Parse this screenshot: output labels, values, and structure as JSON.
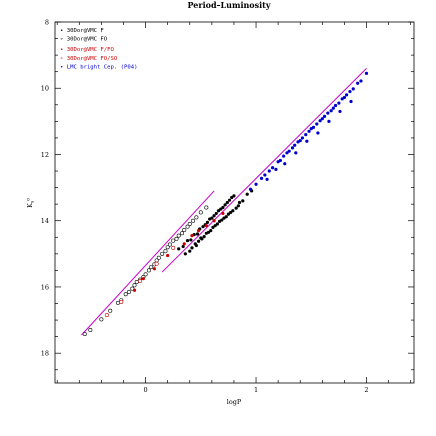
{
  "chart_data": {
    "type": "scatter",
    "title": "Period–Luminosity",
    "xlabel": "logP",
    "ylabel": "K",
    "ylabel_super": "o",
    "ylabel_sub": "s",
    "xlim": [
      -0.82,
      2.43
    ],
    "ylim": [
      18.9,
      8.0
    ],
    "xticks": [
      0,
      1,
      2
    ],
    "yticks": [
      8,
      10,
      12,
      14,
      16,
      18
    ],
    "legend_position": "top-left",
    "legend": [
      {
        "label": "• 30Dor@VMC F",
        "color": "#000000"
      },
      {
        "label": "∘ 30Dor@VMC FO",
        "color": "#000000"
      },
      {
        "label": "• 30Dor@VMC F/FO",
        "color": "#cc0000"
      },
      {
        "label": "∘ 30Dor@VMC FO/SO",
        "color": "#cc0000"
      },
      {
        "label": "• LMC bright Cep. (P04)",
        "color": "#0000cc"
      }
    ],
    "fit_lines": [
      {
        "x": [
          -0.58,
          0.62
        ],
        "y": [
          17.45,
          13.1
        ],
        "color": "#cc00cc"
      },
      {
        "x": [
          0.15,
          2.0
        ],
        "y": [
          15.55,
          9.4
        ],
        "color": "#cc00cc"
      }
    ],
    "series": [
      {
        "name": "30Dor@VMC F",
        "marker": "filled",
        "color": "#000000",
        "x": [
          0.3,
          0.34,
          0.38,
          0.41,
          0.44,
          0.47,
          0.49,
          0.52,
          0.54,
          0.56,
          0.58,
          0.6,
          0.62,
          0.64,
          0.66,
          0.68,
          0.7,
          0.72,
          0.74,
          0.76,
          0.78,
          0.8,
          0.45,
          0.5,
          0.55,
          0.61,
          0.67,
          0.73,
          0.79,
          0.85,
          0.36,
          0.42,
          0.48,
          0.53,
          0.57,
          0.63,
          0.69,
          0.75,
          0.82,
          0.88,
          0.4,
          0.46,
          0.51,
          0.59,
          0.65,
          0.71,
          0.77,
          0.84,
          0.92,
          0.96
        ],
        "y": [
          14.85,
          14.78,
          14.6,
          14.58,
          14.42,
          14.4,
          14.25,
          14.18,
          14.12,
          14.05,
          13.95,
          13.92,
          13.85,
          13.78,
          13.7,
          13.65,
          13.6,
          13.52,
          13.45,
          13.38,
          13.3,
          13.25,
          14.7,
          14.52,
          14.38,
          14.2,
          14.02,
          13.88,
          13.7,
          13.45,
          15.0,
          14.82,
          14.62,
          14.48,
          14.35,
          14.15,
          13.98,
          13.8,
          13.62,
          13.4,
          14.92,
          14.75,
          14.55,
          14.3,
          14.1,
          13.92,
          13.75,
          13.55,
          13.2,
          13.1
        ]
      },
      {
        "name": "30Dor@VMC FO",
        "marker": "open",
        "color": "#000000",
        "x": [
          -0.55,
          -0.5,
          -0.4,
          -0.32,
          -0.25,
          -0.22,
          -0.18,
          -0.15,
          -0.12,
          -0.1,
          -0.08,
          -0.05,
          -0.02,
          0.0,
          0.03,
          0.05,
          0.08,
          0.1,
          0.12,
          0.15,
          0.18,
          0.2,
          0.22,
          0.25,
          0.28,
          0.3,
          0.33,
          0.35,
          0.38,
          0.4,
          0.43,
          0.46,
          0.5,
          0.55
        ],
        "y": [
          17.42,
          17.3,
          16.98,
          16.72,
          16.48,
          16.4,
          16.22,
          16.15,
          16.05,
          15.95,
          15.85,
          15.78,
          15.7,
          15.62,
          15.5,
          15.4,
          15.32,
          15.2,
          15.12,
          15.0,
          14.92,
          14.8,
          14.72,
          14.6,
          14.55,
          14.45,
          14.38,
          14.28,
          14.18,
          14.1,
          14.0,
          13.9,
          13.75,
          13.6
        ]
      },
      {
        "name": "30Dor@VMC F/FO",
        "marker": "filled",
        "color": "#cc0000",
        "x": [
          -0.1,
          -0.02,
          0.08,
          0.2,
          0.35,
          0.42,
          0.48,
          0.55,
          0.62,
          0.7
        ],
        "y": [
          16.1,
          15.75,
          15.45,
          15.05,
          14.7,
          14.45,
          14.3,
          14.15,
          14.0,
          13.78
        ]
      },
      {
        "name": "30Dor@VMC FO/SO",
        "marker": "open",
        "color": "#cc0000",
        "x": [
          -0.35,
          -0.22,
          -0.05,
          0.1,
          0.25
        ],
        "y": [
          16.85,
          16.45,
          15.82,
          15.3,
          14.82
        ]
      },
      {
        "name": "LMC bright Cep. (P04)",
        "marker": "filled",
        "color": "#0000cc",
        "x": [
          0.95,
          1.0,
          1.05,
          1.08,
          1.12,
          1.15,
          1.2,
          1.22,
          1.25,
          1.28,
          1.3,
          1.33,
          1.35,
          1.38,
          1.4,
          1.42,
          1.45,
          1.48,
          1.5,
          1.52,
          1.55,
          1.58,
          1.6,
          1.62,
          1.65,
          1.68,
          1.7,
          1.72,
          1.75,
          1.78,
          1.8,
          1.82,
          1.85,
          1.88,
          1.92,
          1.95,
          2.0,
          1.1,
          1.18,
          1.26,
          1.36,
          1.46,
          1.56,
          1.66,
          1.76,
          1.86
        ],
        "y": [
          13.05,
          12.9,
          12.72,
          12.62,
          12.5,
          12.4,
          12.22,
          12.18,
          12.05,
          11.95,
          11.9,
          11.8,
          11.72,
          11.62,
          11.58,
          11.5,
          11.4,
          11.3,
          11.22,
          11.18,
          11.08,
          10.98,
          10.92,
          10.85,
          10.75,
          10.68,
          10.6,
          10.52,
          10.45,
          10.32,
          10.28,
          10.2,
          10.1,
          10.02,
          9.85,
          9.78,
          9.55,
          12.75,
          12.45,
          12.28,
          11.95,
          11.6,
          11.35,
          11.0,
          10.7,
          10.4
        ]
      }
    ]
  }
}
